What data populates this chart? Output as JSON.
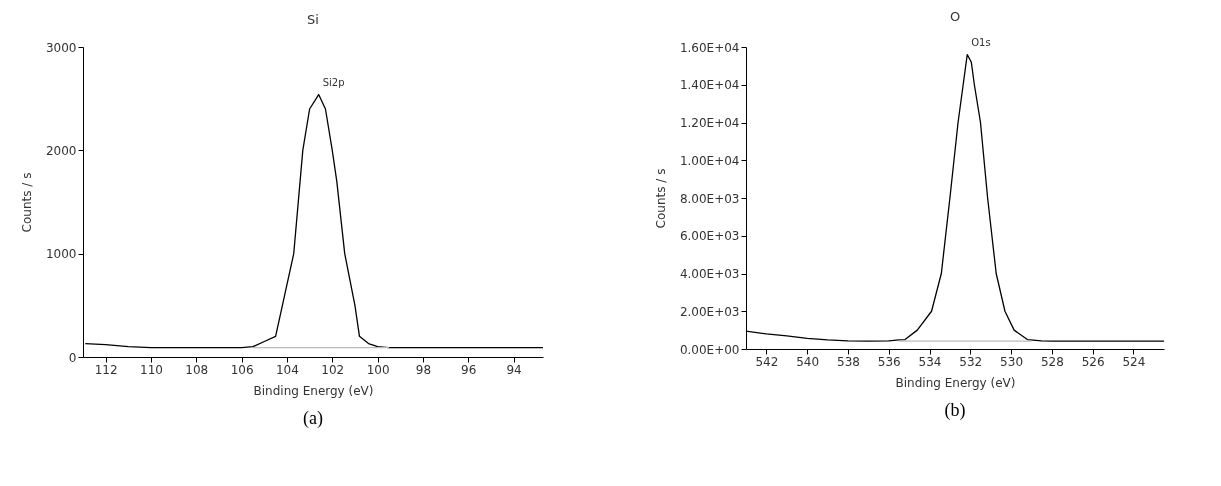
{
  "chart_data": [
    {
      "type": "line",
      "title": "Si",
      "xlabel": "Binding Energy (eV)",
      "ylabel": "Counts / s",
      "xlim": [
        113,
        92.7
      ],
      "xticks": [
        112,
        110,
        108,
        106,
        104,
        102,
        100,
        98,
        96,
        94
      ],
      "ylim": [
        0,
        3000
      ],
      "yticks": [
        0,
        1000,
        2000,
        3000
      ],
      "grid": false,
      "marker": "none",
      "line_style": "solid",
      "series": [
        {
          "color": "#000000",
          "x": [
            112.9,
            112,
            111,
            110,
            108,
            106,
            105.5,
            105,
            104.5,
            104.2,
            103.7,
            103.3,
            103,
            102.6,
            102.3,
            102,
            101.8,
            101.45,
            101,
            100.8,
            100.4,
            100,
            99.5,
            98,
            96,
            94,
            92.7
          ],
          "values": [
            130,
            120,
            100,
            90,
            90,
            90,
            100,
            150,
            200,
            500,
            1000,
            2000,
            2400,
            2540,
            2400,
            2000,
            1700,
            1000,
            500,
            200,
            130,
            100,
            90,
            90,
            90,
            90,
            90
          ]
        },
        {
          "color": "#bbbbbb",
          "x": [
            105.5,
            99.5
          ],
          "values": [
            90,
            90
          ]
        }
      ],
      "annotations": [
        {
          "text": "Si2p",
          "x": 102.6,
          "y": 2540
        },
        "(a)"
      ]
    },
    {
      "type": "line",
      "title": "O",
      "xlabel": "Binding Energy (eV)",
      "ylabel": "Counts / s",
      "xlim": [
        543,
        522.5
      ],
      "xticks": [
        542,
        540,
        538,
        536,
        534,
        532,
        530,
        528,
        526,
        524
      ],
      "ylim": [
        0,
        16000
      ],
      "yticks": [
        {
          "value": 0,
          "label": "0.00E+00"
        },
        {
          "value": 2000,
          "label": "2.00E+03"
        },
        {
          "value": 4000,
          "label": "4.00E+03"
        },
        {
          "value": 6000,
          "label": "6.00E+03"
        },
        {
          "value": 8000,
          "label": "8.00E+03"
        },
        {
          "value": 10000,
          "label": "1.00E+04"
        },
        {
          "value": 12000,
          "label": "1.20E+04"
        },
        {
          "value": 14000,
          "label": "1.40E+04"
        },
        {
          "value": 16000,
          "label": "1.60E+04"
        }
      ],
      "grid": false,
      "marker": "none",
      "line_style": "solid",
      "series": [
        {
          "color": "#000000",
          "x": [
            543,
            542,
            541,
            540,
            539,
            538,
            537,
            536,
            535.5,
            535.2,
            534.6,
            533.9,
            533.42,
            533,
            532.6,
            532.35,
            532.15,
            531.95,
            531.8,
            531.5,
            531.15,
            530.73,
            530.3,
            529.85,
            529.2,
            528.5,
            528,
            526,
            524,
            522.5
          ],
          "values": [
            950,
            800,
            700,
            560,
            480,
            430,
            420,
            430,
            480,
            500,
            1000,
            2000,
            4000,
            8000,
            12000,
            14000,
            15600,
            15200,
            14000,
            12000,
            8000,
            4000,
            2000,
            1000,
            500,
            430,
            420,
            420,
            420,
            420
          ]
        },
        {
          "color": "#bbbbbb",
          "x": [
            535.5,
            529
          ],
          "values": [
            420,
            420
          ]
        }
      ],
      "annotations": [
        {
          "text": "O1s",
          "x": 532.15,
          "y": 15600
        },
        "(b)"
      ]
    }
  ]
}
